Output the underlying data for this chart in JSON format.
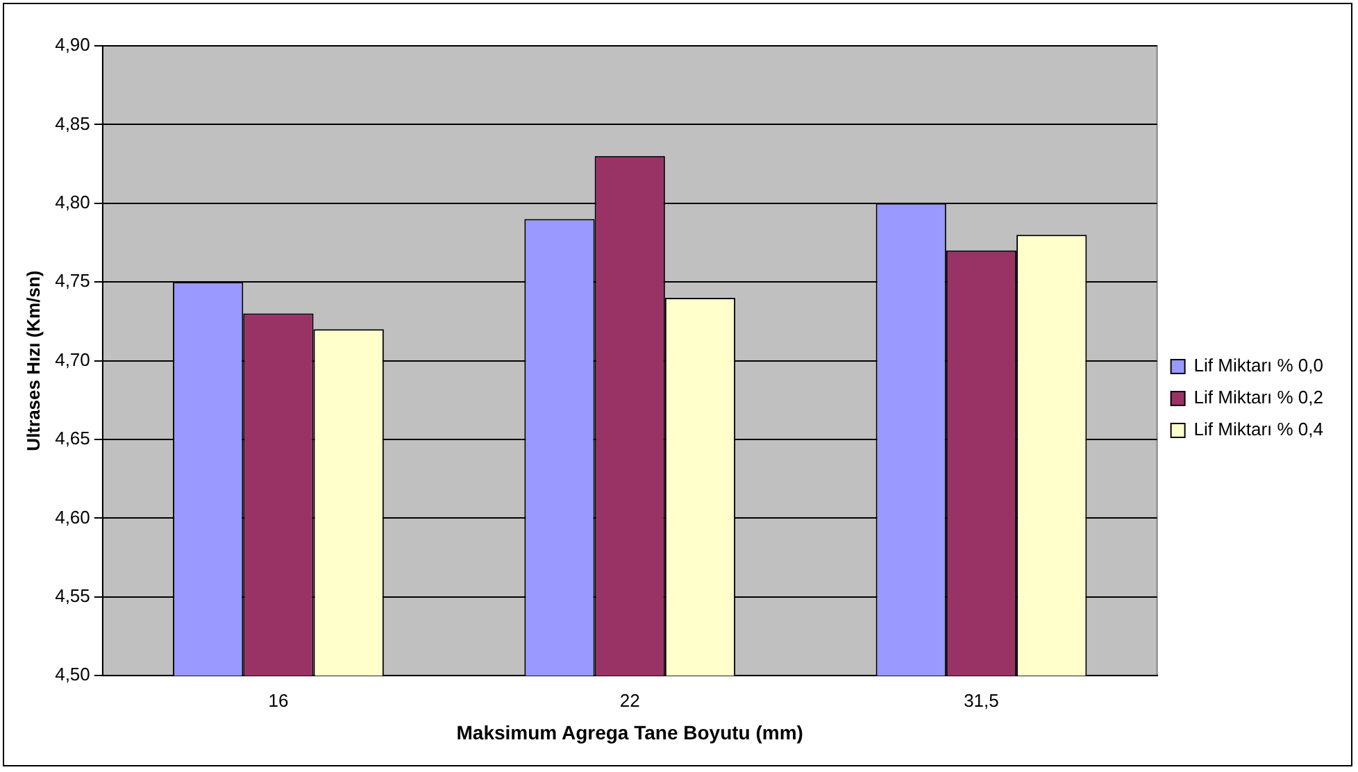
{
  "chart_data": {
    "type": "bar",
    "xlabel": "Maksimum Agrega Tane Boyutu (mm)",
    "ylabel": "Ultrases Hızı (Km/sn)",
    "categories": [
      "16",
      "22",
      "31,5"
    ],
    "series": [
      {
        "name": "Lif Miktarı % 0,0",
        "color": "#9999ff",
        "values": [
          4.75,
          4.79,
          4.8
        ]
      },
      {
        "name": "Lif Miktarı % 0,2",
        "color": "#993366",
        "values": [
          4.73,
          4.83,
          4.77
        ]
      },
      {
        "name": "Lif Miktarı % 0,4",
        "color": "#ffffcc",
        "values": [
          4.72,
          4.74,
          4.78
        ]
      }
    ],
    "ylim": [
      4.5,
      4.9
    ],
    "yticks": [
      {
        "value": 4.5,
        "label": "4,50"
      },
      {
        "value": 4.55,
        "label": "4,55"
      },
      {
        "value": 4.6,
        "label": "4,60"
      },
      {
        "value": 4.65,
        "label": "4,65"
      },
      {
        "value": 4.7,
        "label": "4,70"
      },
      {
        "value": 4.75,
        "label": "4,75"
      },
      {
        "value": 4.8,
        "label": "4,80"
      },
      {
        "value": 4.85,
        "label": "4,85"
      },
      {
        "value": 4.9,
        "label": "4,90"
      }
    ],
    "grid": "y",
    "legend": "right"
  }
}
